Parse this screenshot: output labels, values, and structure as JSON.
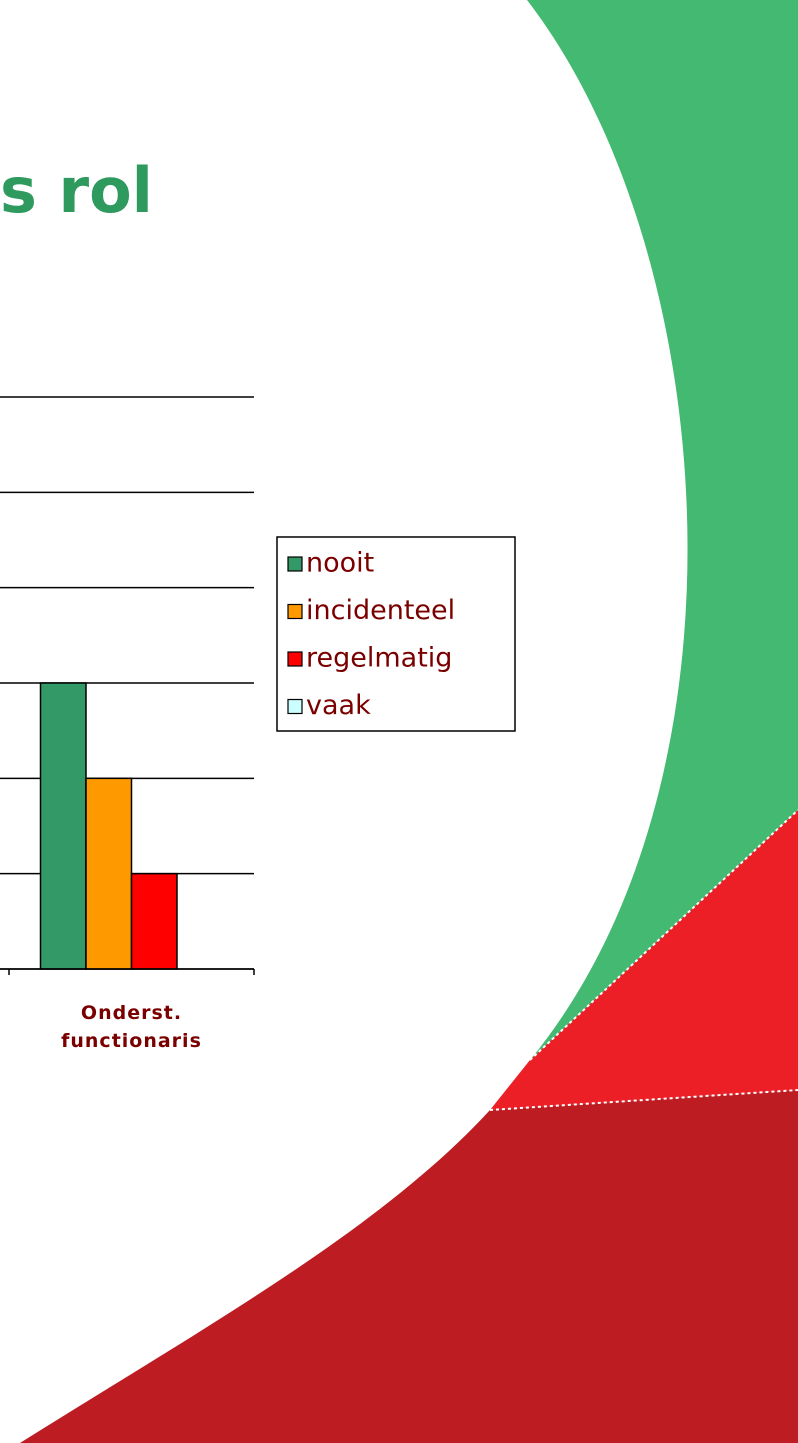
{
  "chart_data": {
    "type": "bar",
    "title": "s rol",
    "categories": [
      "Onderst. functionaris"
    ],
    "series": [
      {
        "name": "nooit",
        "color": "#339966",
        "values": [
          3
        ]
      },
      {
        "name": "incidenteel",
        "color": "#ff9900",
        "values": [
          2
        ]
      },
      {
        "name": "regelmatig",
        "color": "#ff0000",
        "values": [
          1
        ]
      },
      {
        "name": "vaak",
        "color": "#ccffff",
        "values": [
          0
        ]
      }
    ],
    "ylim": [
      0,
      6
    ],
    "yticks": [
      0,
      1,
      2,
      3,
      4,
      5,
      6
    ],
    "grid": true,
    "legend": "right"
  }
}
